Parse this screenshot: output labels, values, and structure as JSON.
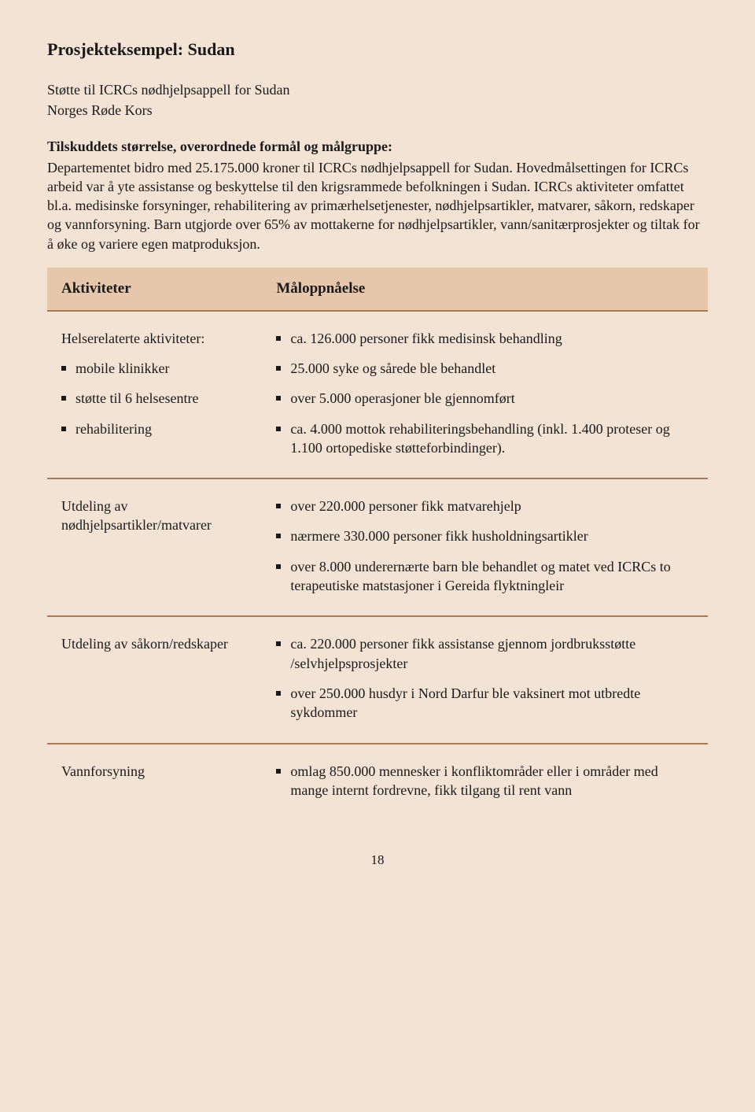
{
  "colors": {
    "page_bg": "#f3e3d5",
    "header_bg": "#e7c7ab",
    "rule": "#a87a56",
    "text": "#1a1a1a"
  },
  "page_number": "18",
  "title": "Prosjekteksempel: Sudan",
  "intro_lines": [
    "Støtte til ICRCs nødhjelpsappell for Sudan",
    "Norges Røde Kors"
  ],
  "sub_heading": "Tilskuddets størrelse, overordnede formål og målgruppe:",
  "body": "Departementet bidro med 25.175.000 kroner til ICRCs nødhjelpsappell for Sudan. Hovedmålsettingen for ICRCs arbeid var å yte assistanse og beskyttelse til den krigsrammede befolkningen i Sudan. ICRCs aktiviteter omfattet bl.a. medisinske forsyninger, rehabilitering av primærhelsetjenester, nødhjelpsartikler, matvarer, såkorn, redskaper og vannforsyning. Barn utgjorde over 65% av mottakerne for nødhjelpsartikler, vann/sanitærprosjekter og tiltak for å øke og variere egen matproduksjon.",
  "table": {
    "header_left": "Aktiviteter",
    "header_right": "Måloppnåelse",
    "sections": [
      {
        "left_title": "Helserelaterte aktiviteter:",
        "left_items": [
          "mobile klinikker",
          "støtte til 6 helsesentre",
          "rehabilitering"
        ],
        "right_items": [
          "ca. 126.000 personer fikk medisinsk behandling",
          "25.000 syke og sårede ble behandlet",
          "over 5.000 operasjoner ble gjennomført",
          "ca. 4.000 mottok rehabiliteringsbehandling (inkl. 1.400 proteser og 1.100 ortopediske støtteforbindinger)."
        ]
      },
      {
        "left_title": "Utdeling av nødhjelpsartikler/matvarer",
        "left_items": [],
        "right_items": [
          "over 220.000 personer fikk matvarehjelp",
          "nærmere 330.000 personer fikk husholdningsartikler",
          "over 8.000 underernærte barn ble behandlet og matet ved ICRCs to terapeutiske matstasjoner i Gereida flyktningleir"
        ]
      },
      {
        "left_title": "Utdeling av såkorn/redskaper",
        "left_items": [],
        "right_items": [
          "ca. 220.000 personer fikk assistanse gjennom jordbruksstøtte /selvhjelpsprosjekter",
          "over 250.000 husdyr i Nord Darfur ble vaksinert mot utbredte sykdommer"
        ]
      },
      {
        "left_title": "Vannforsyning",
        "left_items": [],
        "right_items": [
          "omlag 850.000 mennesker i konfliktområder eller i områder med mange internt fordrevne, fikk tilgang til rent vann"
        ]
      }
    ]
  }
}
